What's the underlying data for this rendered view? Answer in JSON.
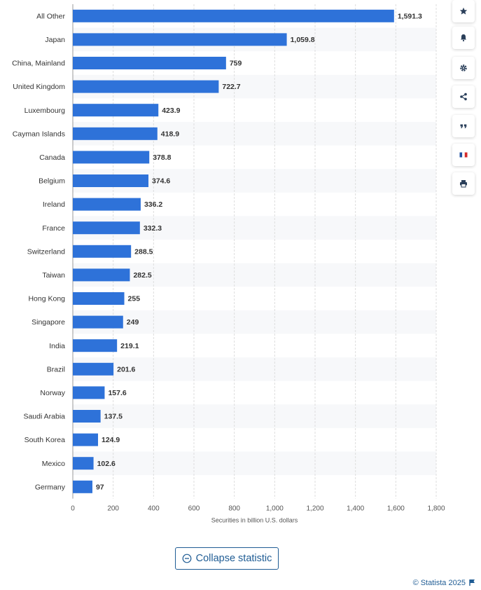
{
  "chart_data": {
    "type": "bar",
    "orientation": "horizontal",
    "categories": [
      "All Other",
      "Japan",
      "China, Mainland",
      "United Kingdom",
      "Luxembourg",
      "Cayman Islands",
      "Canada",
      "Belgium",
      "Ireland",
      "France",
      "Switzerland",
      "Taiwan",
      "Hong Kong",
      "Singapore",
      "India",
      "Brazil",
      "Norway",
      "Saudi Arabia",
      "South Korea",
      "Mexico",
      "Germany"
    ],
    "values": [
      1591.3,
      1059.8,
      759,
      722.7,
      423.9,
      418.9,
      378.8,
      374.6,
      336.2,
      332.3,
      288.5,
      282.5,
      255,
      249,
      219.1,
      201.6,
      157.6,
      137.5,
      124.9,
      102.6,
      97
    ],
    "value_labels": [
      "1,591.3",
      "1,059.8",
      "759",
      "722.7",
      "423.9",
      "418.9",
      "378.8",
      "374.6",
      "336.2",
      "332.3",
      "288.5",
      "282.5",
      "255",
      "249",
      "219.1",
      "201.6",
      "157.6",
      "137.5",
      "124.9",
      "102.6",
      "97"
    ],
    "xlim": [
      0,
      1800
    ],
    "xticks": [
      0,
      200,
      400,
      600,
      800,
      1000,
      1200,
      1400,
      1600,
      1800
    ],
    "xtick_labels": [
      "0",
      "200",
      "400",
      "600",
      "800",
      "1,000",
      "1,200",
      "1,400",
      "1,600",
      "1,800"
    ],
    "xlabel": "Securities in billion U.S. dollars",
    "ylabel": "",
    "grid": true,
    "bar_color": "#2e72d9"
  },
  "toolbar": {
    "buttons": [
      {
        "name": "favorite-button",
        "icon": "star-icon"
      },
      {
        "name": "notification-button",
        "icon": "bell-icon"
      },
      {
        "name": "settings-button",
        "icon": "gear-icon"
      },
      {
        "name": "share-button",
        "icon": "share-icon"
      },
      {
        "name": "cite-button",
        "icon": "quote-icon"
      },
      {
        "name": "language-button",
        "icon": "french-flag-icon"
      },
      {
        "name": "print-button",
        "icon": "printer-icon"
      }
    ]
  },
  "collapse": {
    "label": "Collapse statistic",
    "icon": "minus-circle-icon"
  },
  "footer": {
    "copyright": "© Statista 2025",
    "flag_icon": "flag-icon"
  },
  "colors": {
    "accent": "#1f5c94",
    "bar": "#2e72d9",
    "stripe": "#f7f8fa",
    "grid": "#dddddd"
  }
}
